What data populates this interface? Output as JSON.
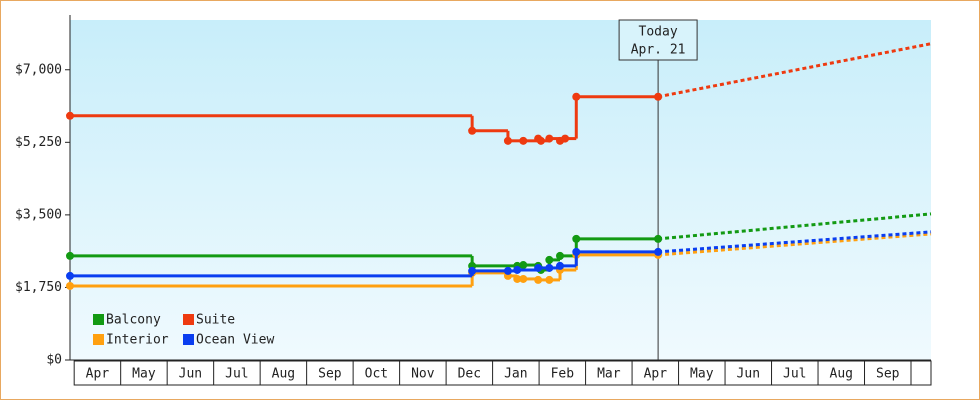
{
  "chart_data": {
    "type": "step-line",
    "annotation": {
      "title": "Today",
      "subtitle": "Apr. 21",
      "x": 12.56
    },
    "xlim": [
      -0.09,
      18.43
    ],
    "xticks": [
      {
        "value": 0.5,
        "label": "Apr"
      },
      {
        "value": 1.5,
        "label": "May"
      },
      {
        "value": 2.5,
        "label": "Jun"
      },
      {
        "value": 3.5,
        "label": "Jul"
      },
      {
        "value": 4.5,
        "label": "Aug"
      },
      {
        "value": 5.5,
        "label": "Sep"
      },
      {
        "value": 6.5,
        "label": "Oct"
      },
      {
        "value": 7.5,
        "label": "Nov"
      },
      {
        "value": 8.5,
        "label": "Dec"
      },
      {
        "value": 9.5,
        "label": "Jan"
      },
      {
        "value": 10.5,
        "label": "Feb"
      },
      {
        "value": 11.5,
        "label": "Mar"
      },
      {
        "value": 12.5,
        "label": "Apr"
      },
      {
        "value": 13.5,
        "label": "May"
      },
      {
        "value": 14.5,
        "label": "Jun"
      },
      {
        "value": 15.5,
        "label": "Jul"
      },
      {
        "value": 16.5,
        "label": "Aug"
      },
      {
        "value": 17.5,
        "label": "Sep"
      }
    ],
    "ylim": [
      0,
      8200
    ],
    "yticks": [
      {
        "value": 0,
        "label": "$0"
      },
      {
        "value": 1750,
        "label": "$1,750"
      },
      {
        "value": 3500,
        "label": "$3,500"
      },
      {
        "value": 5250,
        "label": "$5,250"
      },
      {
        "value": 7000,
        "label": "$7,000"
      }
    ],
    "series": [
      {
        "name": "Balcony",
        "color": "#139a13",
        "x": [
          -0.09,
          8.56,
          9.53,
          9.66,
          9.98,
          10.04,
          10.22,
          10.45,
          10.8,
          12.56
        ],
        "values": [
          2510,
          2269,
          2269,
          2290,
          2269,
          2172,
          2414,
          2510,
          2921,
          2921
        ],
        "projected": {
          "x": [
            12.56,
            18.43
          ],
          "values": [
            2921,
            3524
          ]
        }
      },
      {
        "name": "Suite",
        "color": "#ee3a10",
        "x": [
          -0.09,
          8.56,
          9.33,
          9.66,
          9.98,
          10.04,
          10.22,
          10.45,
          10.56,
          10.8,
          12.56
        ],
        "values": [
          5890,
          5528,
          5286,
          5286,
          5340,
          5286,
          5340,
          5286,
          5340,
          6349,
          6349
        ],
        "projected": {
          "x": [
            12.56,
            18.43
          ],
          "values": [
            6349,
            7628
          ]
        }
      },
      {
        "name": "Interior",
        "color": "#ffa010",
        "x": [
          -0.09,
          8.56,
          9.33,
          9.53,
          9.66,
          9.98,
          10.22,
          10.45,
          10.8,
          12.56
        ],
        "values": [
          1786,
          2100,
          2028,
          1955,
          1955,
          1931,
          1931,
          2172,
          2534,
          2534
        ],
        "projected": {
          "x": [
            12.56,
            18.43
          ],
          "values": [
            2534,
            3041
          ]
        }
      },
      {
        "name": "Ocean View",
        "color": "#0a3ef0",
        "x": [
          -0.09,
          8.56,
          9.33,
          9.53,
          9.98,
          10.22,
          10.45,
          10.8,
          12.56
        ],
        "values": [
          2028,
          2148,
          2148,
          2172,
          2220,
          2220,
          2269,
          2607,
          2607
        ],
        "projected": {
          "x": [
            12.56,
            18.43
          ],
          "values": [
            2607,
            3090
          ]
        }
      }
    ]
  }
}
